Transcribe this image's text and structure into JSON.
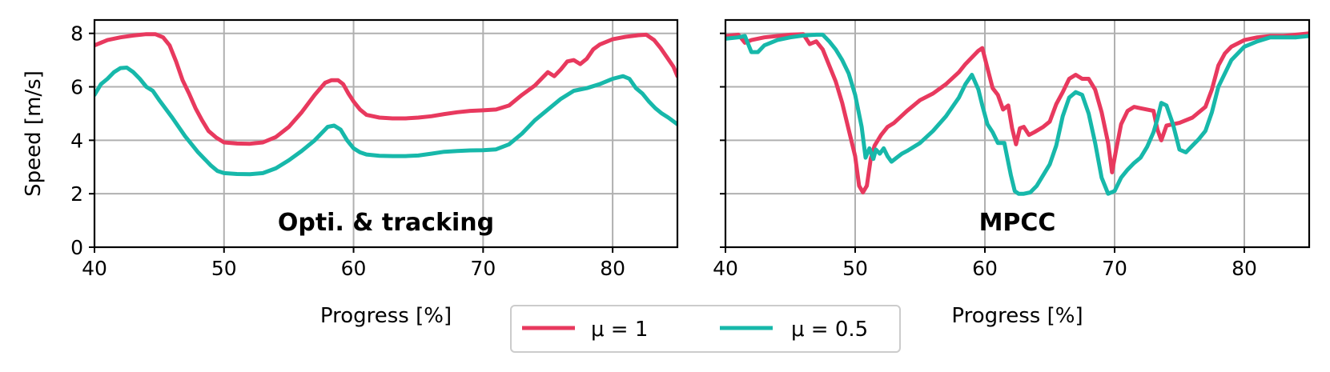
{
  "chart_data": [
    {
      "type": "line",
      "title": "Opti. & tracking",
      "xlabel": "Progress [%]",
      "ylabel": "Speed [m/s]",
      "xlim": [
        40,
        85
      ],
      "ylim": [
        0,
        8.5
      ],
      "xticks": [
        40,
        50,
        60,
        70,
        80
      ],
      "yticks": [
        0,
        2,
        4,
        6,
        8
      ],
      "grid": true,
      "series": [
        {
          "name": "μ = 1",
          "color": "#e8395e",
          "x": [
            40,
            41,
            42,
            43,
            44,
            44.7,
            45.3,
            45.8,
            46.3,
            46.8,
            47.3,
            47.8,
            48.3,
            48.8,
            49.4,
            50,
            51,
            52,
            53,
            54,
            55,
            56,
            57,
            57.8,
            58.3,
            58.8,
            59.2,
            59.6,
            60,
            60.5,
            61,
            62,
            63,
            64,
            65,
            66,
            67,
            68,
            69,
            70,
            71,
            72,
            73,
            74,
            74.6,
            75,
            75.5,
            76,
            76.5,
            77,
            77.5,
            78,
            78.5,
            79,
            80,
            81,
            82,
            82.6,
            83.2,
            83.7,
            84.2,
            84.7,
            85
          ],
          "values": [
            7.55,
            7.75,
            7.85,
            7.92,
            7.97,
            7.97,
            7.85,
            7.55,
            6.95,
            6.25,
            5.75,
            5.2,
            4.75,
            4.35,
            4.1,
            3.92,
            3.88,
            3.87,
            3.92,
            4.12,
            4.5,
            5.05,
            5.7,
            6.15,
            6.25,
            6.25,
            6.1,
            5.75,
            5.45,
            5.15,
            4.95,
            4.85,
            4.82,
            4.82,
            4.85,
            4.9,
            4.98,
            5.05,
            5.1,
            5.12,
            5.15,
            5.3,
            5.7,
            6.05,
            6.35,
            6.55,
            6.4,
            6.65,
            6.95,
            7.0,
            6.85,
            7.05,
            7.4,
            7.58,
            7.78,
            7.87,
            7.93,
            7.95,
            7.75,
            7.45,
            7.1,
            6.75,
            6.4
          ]
        },
        {
          "name": "μ = 0.5",
          "color": "#17b8aa",
          "x": [
            40,
            40.5,
            41,
            41.5,
            42,
            42.5,
            43,
            43.5,
            44,
            44.5,
            45,
            46,
            47,
            48,
            49,
            49.5,
            50,
            51,
            52,
            53,
            54,
            55,
            56,
            57,
            58,
            58.5,
            59,
            59.5,
            60,
            60.5,
            61,
            62,
            63,
            64,
            65,
            66,
            67,
            68,
            69,
            70,
            71,
            72,
            73,
            74,
            75,
            76,
            77,
            78,
            79,
            80,
            80.8,
            81.3,
            81.8,
            82.3,
            82.8,
            83.3,
            83.8,
            84.3,
            85
          ],
          "values": [
            5.7,
            6.1,
            6.3,
            6.55,
            6.7,
            6.72,
            6.55,
            6.3,
            6.0,
            5.85,
            5.5,
            4.85,
            4.15,
            3.55,
            3.05,
            2.85,
            2.77,
            2.74,
            2.73,
            2.77,
            2.95,
            3.25,
            3.6,
            4.0,
            4.5,
            4.55,
            4.4,
            4.0,
            3.7,
            3.55,
            3.47,
            3.42,
            3.41,
            3.41,
            3.43,
            3.5,
            3.57,
            3.6,
            3.62,
            3.63,
            3.66,
            3.85,
            4.25,
            4.75,
            5.15,
            5.55,
            5.85,
            5.95,
            6.1,
            6.3,
            6.4,
            6.3,
            5.95,
            5.75,
            5.45,
            5.2,
            5.0,
            4.85,
            4.6
          ]
        }
      ]
    },
    {
      "type": "line",
      "title": "MPCC",
      "xlabel": "Progress [%]",
      "ylabel": "",
      "xlim": [
        40,
        85
      ],
      "ylim": [
        0,
        8.5
      ],
      "xticks": [
        40,
        50,
        60,
        70,
        80
      ],
      "yticks": [
        0,
        2,
        4,
        6,
        8
      ],
      "grid": true,
      "series": [
        {
          "name": "μ = 1",
          "color": "#e8395e",
          "x": [
            40,
            41,
            41.5,
            42,
            43,
            44,
            45,
            46,
            46.5,
            47,
            47.5,
            48,
            48.5,
            49,
            49.5,
            50,
            50.3,
            50.6,
            50.9,
            51.2,
            51.5,
            52,
            52.5,
            53,
            54,
            55,
            56,
            57,
            58,
            58.5,
            59,
            59.5,
            59.8,
            60.2,
            60.6,
            61,
            61.4,
            61.8,
            62.1,
            62.4,
            62.7,
            63,
            63.4,
            63.8,
            64.5,
            65,
            65.5,
            66,
            66.5,
            67,
            67.5,
            68,
            68.5,
            69,
            69.5,
            69.8,
            70.1,
            70.5,
            71,
            71.5,
            72,
            72.5,
            73,
            73.3,
            73.6,
            74,
            75,
            76,
            77,
            77.5,
            78,
            78.5,
            79,
            80,
            81,
            82,
            83,
            84,
            85
          ],
          "values": [
            7.9,
            7.95,
            7.65,
            7.75,
            7.85,
            7.9,
            7.95,
            7.97,
            7.6,
            7.7,
            7.4,
            6.8,
            6.2,
            5.4,
            4.4,
            3.4,
            2.3,
            2.05,
            2.3,
            3.3,
            3.8,
            4.2,
            4.5,
            4.65,
            5.1,
            5.5,
            5.75,
            6.1,
            6.55,
            6.85,
            7.1,
            7.35,
            7.45,
            6.7,
            5.95,
            5.7,
            5.15,
            5.3,
            4.45,
            3.85,
            4.45,
            4.5,
            4.2,
            4.3,
            4.5,
            4.7,
            5.35,
            5.8,
            6.3,
            6.45,
            6.3,
            6.3,
            5.9,
            5.05,
            3.9,
            2.8,
            3.6,
            4.6,
            5.1,
            5.25,
            5.2,
            5.15,
            5.1,
            4.4,
            4.0,
            4.55,
            4.65,
            4.85,
            5.25,
            5.9,
            6.8,
            7.25,
            7.5,
            7.75,
            7.85,
            7.9,
            7.9,
            7.95,
            8.0
          ]
        },
        {
          "name": "μ = 0.5",
          "color": "#17b8aa",
          "x": [
            40,
            41,
            41.5,
            42,
            42.5,
            43,
            44,
            45,
            46,
            47,
            47.5,
            48,
            48.5,
            49,
            49.5,
            50,
            50.5,
            50.8,
            51.1,
            51.4,
            51.6,
            51.9,
            52.2,
            52.5,
            52.8,
            53.2,
            53.6,
            54,
            55,
            56,
            57,
            58,
            58.5,
            59,
            59.5,
            59.8,
            60.2,
            60.6,
            61,
            61.5,
            62,
            62.3,
            62.6,
            63,
            63.5,
            64,
            64.5,
            65,
            65.5,
            66,
            66.5,
            67,
            67.5,
            68,
            68.5,
            69,
            69.5,
            70,
            70.5,
            71,
            71.5,
            72,
            72.5,
            73,
            73.3,
            73.6,
            74,
            74.5,
            75,
            75.5,
            76,
            76.5,
            77,
            77.5,
            78,
            79,
            80,
            81,
            82,
            83,
            84,
            85
          ],
          "values": [
            7.8,
            7.85,
            7.9,
            7.3,
            7.3,
            7.55,
            7.75,
            7.85,
            7.92,
            7.95,
            7.95,
            7.7,
            7.4,
            7.0,
            6.5,
            5.7,
            4.5,
            3.35,
            3.7,
            3.3,
            3.65,
            3.5,
            3.7,
            3.4,
            3.2,
            3.35,
            3.5,
            3.6,
            3.9,
            4.35,
            4.9,
            5.6,
            6.1,
            6.45,
            5.9,
            5.3,
            4.6,
            4.3,
            3.9,
            3.9,
            2.7,
            2.1,
            2.0,
            2.0,
            2.05,
            2.3,
            2.7,
            3.1,
            3.8,
            4.9,
            5.6,
            5.8,
            5.7,
            5.0,
            3.9,
            2.6,
            2.0,
            2.1,
            2.6,
            2.9,
            3.15,
            3.35,
            3.75,
            4.3,
            4.8,
            5.4,
            5.3,
            4.6,
            3.65,
            3.55,
            3.8,
            4.05,
            4.35,
            5.05,
            6.0,
            7.0,
            7.5,
            7.7,
            7.85,
            7.85,
            7.85,
            7.9
          ]
        }
      ]
    }
  ],
  "legend": {
    "placement": "bottom-center",
    "items": [
      {
        "label": "μ = 1",
        "color": "#e8395e"
      },
      {
        "label": "μ = 0.5",
        "color": "#17b8aa"
      }
    ]
  }
}
